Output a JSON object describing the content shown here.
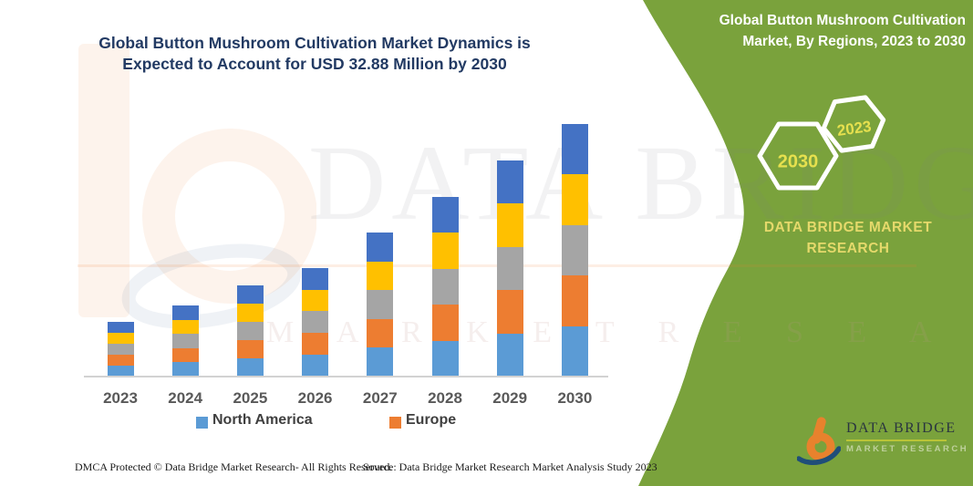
{
  "left_section": {
    "title_line1": "Global Button Mushroom Cultivation Market Dynamics is",
    "title_line2": "Expected to Account for USD 32.88 Million by 2030",
    "footer_left": "DMCA Protected © Data Bridge Market Research-  All Rights Reserved.",
    "footer_right": "Source: Data Bridge Market Research  Market Analysis Study 2023"
  },
  "chart_data": {
    "type": "bar",
    "stacked": true,
    "title": "Global Button Mushroom Cultivation Market Dynamics is Expected to Account for USD 32.88 Million by 2030",
    "unit": "USD Million",
    "categories": [
      "2023",
      "2024",
      "2025",
      "2026",
      "2027",
      "2028",
      "2029",
      "2030"
    ],
    "series": [
      {
        "name": "North America",
        "color": "#5B9BD5",
        "values": [
          1.42,
          1.85,
          2.37,
          2.83,
          3.75,
          4.68,
          5.63,
          6.576
        ]
      },
      {
        "name": "Europe",
        "color": "#ED7D31",
        "values": [
          1.42,
          1.85,
          2.37,
          2.83,
          3.75,
          4.68,
          5.63,
          6.576
        ]
      },
      {
        "name": "",
        "color": "#A5A5A5",
        "values": [
          1.42,
          1.85,
          2.37,
          2.83,
          3.75,
          4.68,
          5.63,
          6.576
        ]
      },
      {
        "name": "",
        "color": "#FFC000",
        "values": [
          1.42,
          1.85,
          2.37,
          2.83,
          3.75,
          4.68,
          5.63,
          6.576
        ]
      },
      {
        "name": "",
        "color": "#4472C4",
        "values": [
          1.42,
          1.85,
          2.37,
          2.83,
          3.75,
          4.68,
          5.63,
          6.576
        ]
      }
    ],
    "totals_usd_million": [
      7.1,
      9.25,
      11.85,
      14.15,
      18.75,
      23.4,
      28.15,
      32.88
    ],
    "values_estimated": true,
    "legend_visible": [
      "North America",
      "Europe"
    ],
    "ylim": [
      0,
      33
    ],
    "grid": false,
    "y_axis_shown": false,
    "legend_position": "bottom"
  },
  "legend": {
    "items": [
      {
        "label": "North America",
        "color": "#5B9BD5"
      },
      {
        "label": "Europe",
        "color": "#ED7D31"
      }
    ]
  },
  "right_panel": {
    "title_line1": "Global Button Mushroom Cultivation",
    "title_line2": "Market, By Regions, 2023 to 2030",
    "hexagon_large": "2030",
    "hexagon_small": "2023",
    "brand_line1": "DATA BRIDGE MARKET",
    "brand_line2": "RESEARCH",
    "colors": {
      "panel_green": "#7AA23C",
      "hex_text": "#E6E04E",
      "brand_text": "#E5D96B",
      "title_blue": "#223A63"
    }
  },
  "logo": {
    "name": "DATA BRIDGE",
    "subtitle": "MARKET RESEARCH"
  },
  "watermark": {
    "text_large": "DATA BRIDGE",
    "text_spaced": "M A R K E T   R E S E A R C H"
  }
}
